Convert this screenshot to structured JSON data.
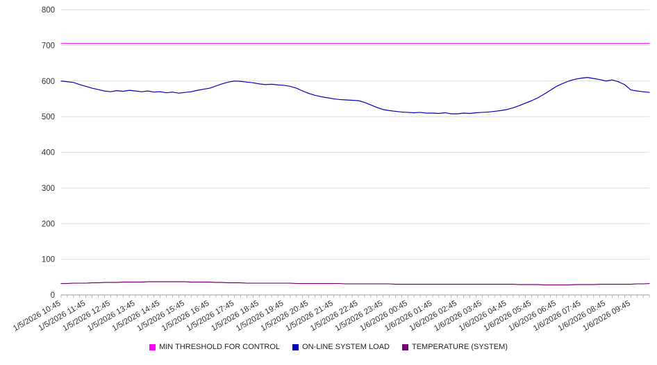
{
  "chart_data": {
    "type": "line",
    "title": "",
    "xlabel": "",
    "ylabel": "",
    "ylim": [
      0,
      800
    ],
    "yticks": [
      0,
      100,
      200,
      300,
      400,
      500,
      600,
      700,
      800
    ],
    "grid": true,
    "legend_position": "bottom",
    "x_labels": [
      "1/5/2026 10:45",
      "1/5/2026 11:45",
      "1/5/2026 12:45",
      "1/5/2026 13:45",
      "1/5/2026 14:45",
      "1/5/2026 15:45",
      "1/5/2026 16:45",
      "1/5/2026 17:45",
      "1/5/2026 18:45",
      "1/5/2026 19:45",
      "1/5/2026 20:45",
      "1/5/2026 21:45",
      "1/5/2026 22:45",
      "1/5/2026 23:45",
      "1/6/2026 00:45",
      "1/6/2026 01:45",
      "1/6/2026 02:45",
      "1/6/2026 03:45",
      "1/6/2026 04:45",
      "1/6/2026 05:45",
      "1/6/2026 06:45",
      "1/6/2026 07:45",
      "1/6/2026 08:45",
      "1/6/2026 09:45"
    ],
    "points_per_label": 4,
    "series": [
      {
        "name": "MIN THRESHOLD FOR CONTROL",
        "color": "#ff00ff",
        "constant": 705
      },
      {
        "name": "ON-LINE SYSTEM LOAD",
        "color": "#0000bb",
        "values": [
          600,
          598,
          596,
          590,
          585,
          580,
          576,
          572,
          570,
          573,
          571,
          574,
          572,
          570,
          572,
          569,
          570,
          567,
          569,
          566,
          568,
          570,
          574,
          577,
          580,
          586,
          592,
          597,
          600,
          599,
          597,
          595,
          592,
          590,
          591,
          589,
          588,
          585,
          580,
          572,
          565,
          560,
          556,
          553,
          550,
          548,
          547,
          546,
          545,
          540,
          533,
          526,
          520,
          517,
          515,
          513,
          512,
          511,
          512,
          510,
          510,
          509,
          511,
          508,
          508,
          510,
          509,
          511,
          512,
          513,
          515,
          517,
          520,
          525,
          531,
          538,
          545,
          553,
          563,
          574,
          585,
          593,
          600,
          605,
          608,
          610,
          607,
          604,
          600,
          603,
          598,
          590,
          575,
          572,
          570,
          568
        ]
      },
      {
        "name": "TEMPERATURE (SYSTEM)",
        "color": "#770077",
        "values": [
          32,
          32,
          33,
          33,
          33,
          34,
          34,
          35,
          35,
          35,
          36,
          36,
          36,
          36,
          37,
          37,
          37,
          37,
          37,
          37,
          37,
          36,
          36,
          36,
          36,
          35,
          35,
          34,
          34,
          34,
          33,
          33,
          33,
          33,
          33,
          33,
          33,
          33,
          32,
          32,
          32,
          32,
          32,
          32,
          32,
          32,
          31,
          31,
          31,
          31,
          31,
          31,
          31,
          31,
          30,
          30,
          30,
          30,
          30,
          30,
          30,
          30,
          30,
          30,
          30,
          30,
          30,
          30,
          30,
          30,
          30,
          30,
          30,
          30,
          29,
          29,
          29,
          29,
          28,
          28,
          28,
          28,
          28,
          29,
          29,
          29,
          29,
          30,
          30,
          30,
          30,
          30,
          30,
          31,
          31,
          32
        ]
      }
    ]
  },
  "legend": {
    "items": [
      {
        "label": "MIN THRESHOLD FOR CONTROL"
      },
      {
        "label": "ON-LINE SYSTEM LOAD"
      },
      {
        "label": "TEMPERATURE (SYSTEM)"
      }
    ]
  }
}
